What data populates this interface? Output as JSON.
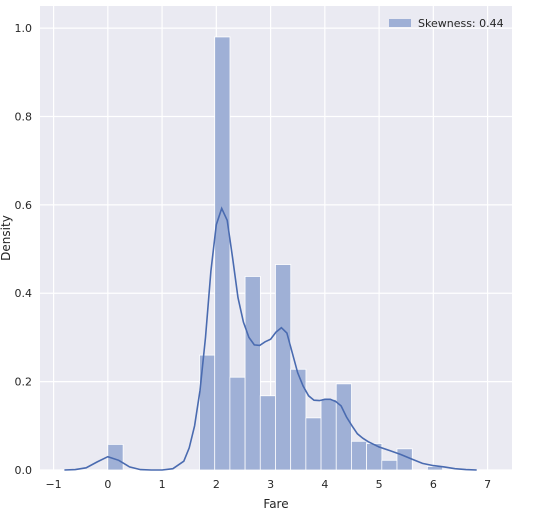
{
  "chart_data": {
    "type": "bar",
    "xlabel": "Fare",
    "ylabel": "Density",
    "xlim": [
      -1.25,
      7.45
    ],
    "ylim": [
      0,
      1.05
    ],
    "xticks": [
      -1,
      0,
      1,
      2,
      3,
      4,
      5,
      6,
      7
    ],
    "yticks": [
      0.0,
      0.2,
      0.4,
      0.6,
      0.8,
      1.0
    ],
    "ytick_labels": [
      "0.0",
      "0.2",
      "0.4",
      "0.6",
      "0.8",
      "1.0"
    ],
    "grid": true,
    "legend": {
      "position": "top-right",
      "entries": [
        "Skewness: 0.44"
      ]
    },
    "colors": {
      "bars": "#9fb0d6",
      "kde": "#4a6bb0",
      "background": "#eaeaf2",
      "grid": "#ffffff"
    },
    "histogram": {
      "bin_width": 0.282,
      "bins": [
        {
          "x0": 0.0,
          "density": 0.058
        },
        {
          "x0": 1.69,
          "density": 0.26
        },
        {
          "x0": 1.97,
          "density": 0.98
        },
        {
          "x0": 2.25,
          "density": 0.21
        },
        {
          "x0": 2.53,
          "density": 0.438
        },
        {
          "x0": 2.81,
          "density": 0.168
        },
        {
          "x0": 3.09,
          "density": 0.465
        },
        {
          "x0": 3.37,
          "density": 0.228
        },
        {
          "x0": 3.65,
          "density": 0.118
        },
        {
          "x0": 3.93,
          "density": 0.16
        },
        {
          "x0": 4.21,
          "density": 0.195
        },
        {
          "x0": 4.49,
          "density": 0.065
        },
        {
          "x0": 4.77,
          "density": 0.06
        },
        {
          "x0": 5.05,
          "density": 0.022
        },
        {
          "x0": 5.33,
          "density": 0.048
        },
        {
          "x0": 5.61,
          "density": 0.0
        },
        {
          "x0": 5.89,
          "density": 0.008
        }
      ]
    },
    "kde": {
      "x": [
        -0.8,
        -0.6,
        -0.4,
        -0.2,
        0.0,
        0.2,
        0.4,
        0.6,
        0.8,
        1.0,
        1.2,
        1.4,
        1.5,
        1.6,
        1.7,
        1.8,
        1.9,
        2.0,
        2.1,
        2.2,
        2.3,
        2.4,
        2.5,
        2.6,
        2.7,
        2.8,
        2.9,
        3.0,
        3.1,
        3.2,
        3.3,
        3.4,
        3.5,
        3.6,
        3.7,
        3.8,
        3.9,
        4.0,
        4.1,
        4.2,
        4.3,
        4.4,
        4.5,
        4.6,
        4.7,
        4.8,
        5.0,
        5.2,
        5.4,
        5.6,
        5.8,
        6.0,
        6.2,
        6.4,
        6.6,
        6.8
      ],
      "y": [
        0.0,
        0.001,
        0.005,
        0.018,
        0.03,
        0.022,
        0.007,
        0.001,
        0.0,
        0.0,
        0.003,
        0.02,
        0.05,
        0.1,
        0.18,
        0.3,
        0.45,
        0.555,
        0.592,
        0.565,
        0.48,
        0.39,
        0.335,
        0.3,
        0.283,
        0.282,
        0.29,
        0.296,
        0.312,
        0.322,
        0.31,
        0.265,
        0.22,
        0.19,
        0.168,
        0.158,
        0.157,
        0.16,
        0.16,
        0.155,
        0.145,
        0.12,
        0.1,
        0.082,
        0.072,
        0.064,
        0.052,
        0.044,
        0.035,
        0.025,
        0.015,
        0.01,
        0.007,
        0.003,
        0.001,
        0.0
      ]
    }
  }
}
